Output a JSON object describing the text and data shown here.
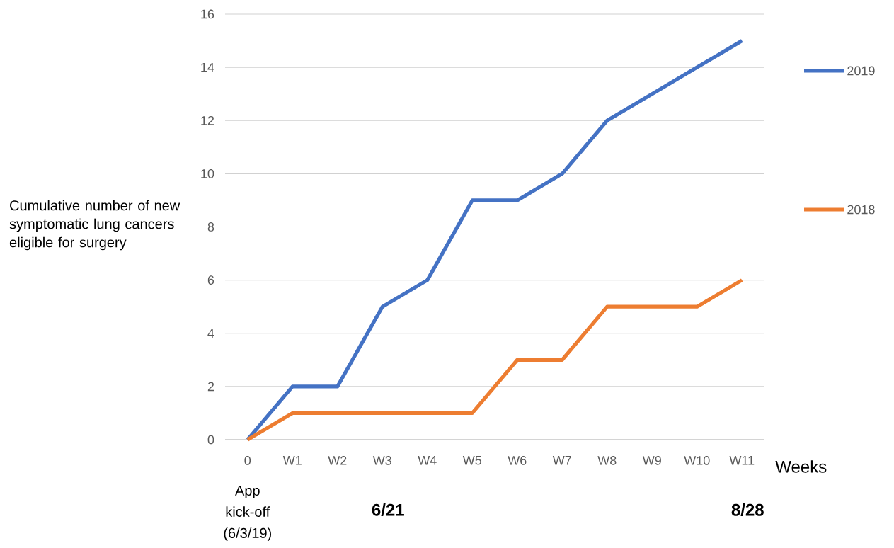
{
  "chart_data": {
    "type": "line",
    "xlabel": "Weeks",
    "ylabel": "Cumulative number of new symptomatic lung cancers eligible for surgery",
    "categories": [
      "0",
      "W1",
      "W2",
      "W3",
      "W4",
      "W5",
      "W6",
      "W7",
      "W8",
      "W9",
      "W10",
      "W11"
    ],
    "series": [
      {
        "name": "2019",
        "color": "#4472c4",
        "values": [
          0,
          2,
          2,
          5,
          6,
          9,
          9,
          10,
          12,
          13,
          14,
          15
        ]
      },
      {
        "name": "2018",
        "color": "#ed7d31",
        "values": [
          0,
          1,
          1,
          1,
          1,
          1,
          3,
          3,
          5,
          5,
          5,
          6
        ]
      }
    ],
    "ylim": [
      0,
      16
    ],
    "yticks": [
      0,
      2,
      4,
      6,
      8,
      10,
      12,
      14,
      16
    ],
    "grid": "y",
    "legend": "right",
    "marker": "none",
    "line_style": "solid",
    "annotations": [
      "App kick-off (6/3/19)",
      "6/21",
      "8/28"
    ]
  }
}
